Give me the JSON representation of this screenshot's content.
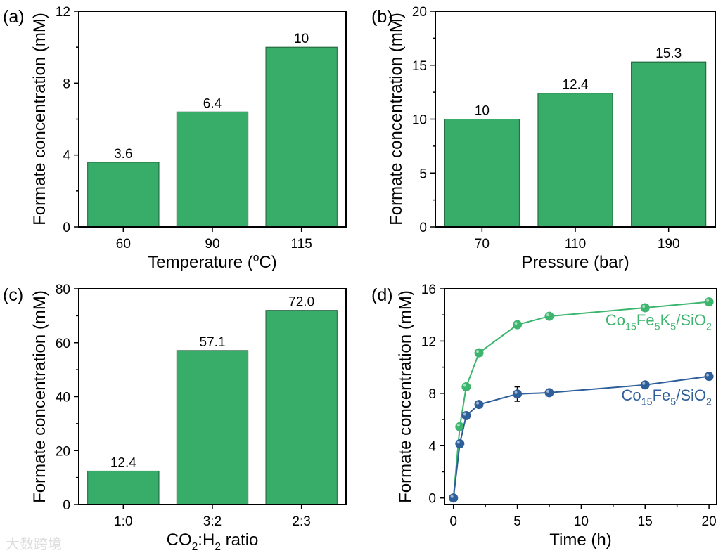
{
  "colors": {
    "bar": "#38ad69",
    "bar_edge": "#1e5a36",
    "green_series": "#3cb56e",
    "blue_series": "#2e5f9a",
    "error_bar": "#000000"
  },
  "watermark": "大数跨境",
  "chart_data": [
    {
      "panel": "(a)",
      "type": "bar",
      "categories": [
        "60",
        "90",
        "115"
      ],
      "values": [
        3.6,
        6.4,
        10
      ],
      "data_labels": [
        "3.6",
        "6.4",
        "10"
      ],
      "xlabel": "Temperature (oC)",
      "ylabel": "Formate concentration (mM)",
      "ylim": [
        0,
        12
      ],
      "yticks": [
        0,
        4,
        8,
        12
      ],
      "ytick_labels": [
        "0",
        "4",
        "8",
        "12"
      ]
    },
    {
      "panel": "(b)",
      "type": "bar",
      "categories": [
        "70",
        "110",
        "190"
      ],
      "values": [
        10,
        12.4,
        15.3
      ],
      "data_labels": [
        "10",
        "12.4",
        "15.3"
      ],
      "xlabel": "Pressure (bar)",
      "ylabel": "Formate concentration (mM)",
      "ylim": [
        0,
        20
      ],
      "yticks": [
        0,
        5,
        10,
        15,
        20
      ],
      "ytick_labels": [
        "0",
        "5",
        "10",
        "15",
        "20"
      ]
    },
    {
      "panel": "(c)",
      "type": "bar",
      "categories": [
        "1:0",
        "3:2",
        "2:3"
      ],
      "values": [
        12.4,
        57.1,
        72.0
      ],
      "data_labels": [
        "12.4",
        "57.1",
        "72.0"
      ],
      "xlabel": "CO2:H2 ratio",
      "ylabel": "Formate concentration (mM)",
      "ylim": [
        0,
        80
      ],
      "yticks": [
        0,
        20,
        40,
        60,
        80
      ],
      "ytick_labels": [
        "0",
        "20",
        "40",
        "60",
        "80"
      ]
    },
    {
      "panel": "(d)",
      "type": "line",
      "xlabel": "Time (h)",
      "ylabel": "Formate concentration (mM)",
      "xlim": [
        -0.7,
        20.6
      ],
      "ylim": [
        -0.5,
        16
      ],
      "xticks": [
        0,
        5,
        10,
        15,
        20
      ],
      "xtick_labels": [
        "0",
        "5",
        "10",
        "15",
        "20"
      ],
      "yticks": [
        0,
        4,
        8,
        12,
        16
      ],
      "ytick_labels": [
        "0",
        "4",
        "8",
        "12",
        "16"
      ],
      "x": [
        0,
        0.5,
        1,
        2,
        5,
        7.5,
        15,
        20
      ],
      "series": [
        {
          "name": "Co15Fe5K5/SiO2",
          "color": "#3cb56e",
          "values": [
            0,
            5.45,
            8.5,
            11.1,
            13.25,
            13.9,
            14.55,
            15.0
          ],
          "errors": [
            0,
            0,
            0,
            0,
            0,
            0,
            0,
            0.15
          ]
        },
        {
          "name": "Co15Fe5/SiO2",
          "color": "#2e5f9a",
          "values": [
            0,
            4.15,
            6.3,
            7.15,
            7.95,
            8.05,
            8.65,
            9.3
          ],
          "errors": [
            0,
            0,
            0,
            0,
            0.55,
            0,
            0,
            0.15
          ]
        }
      ]
    }
  ]
}
